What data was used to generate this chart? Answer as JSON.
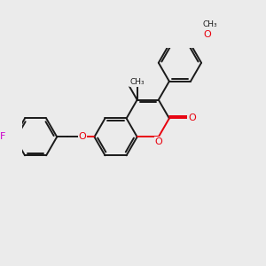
{
  "background_color": "#ebebeb",
  "bond_color": "#1a1a1a",
  "heteroatom_color": "#e8000d",
  "fluorine_color": "#cc00cc",
  "line_width": 1.4,
  "figsize": [
    3.0,
    3.0
  ],
  "dpi": 100,
  "xlim": [
    -3.0,
    3.2
  ],
  "ylim": [
    -2.2,
    2.2
  ]
}
